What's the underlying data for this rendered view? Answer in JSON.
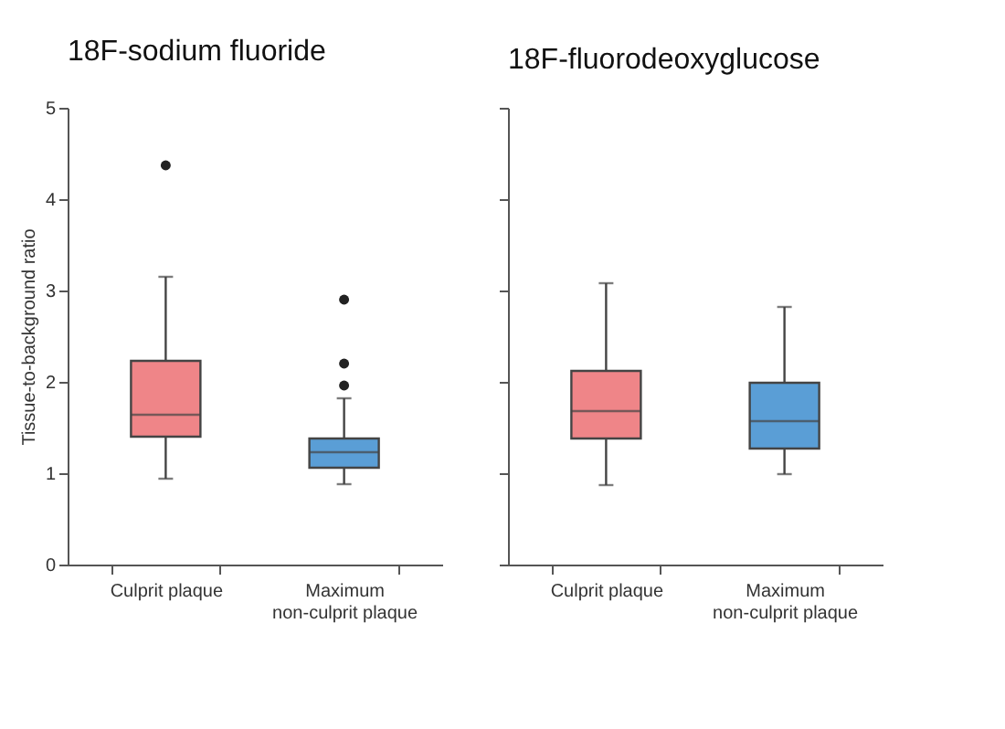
{
  "chart_data": [
    {
      "type": "box",
      "title": "18F-sodium fluoride",
      "ylabel": "Tissue-to-background ratio",
      "categories": [
        "Culprit plaque",
        "Maximum non-culprit plaque"
      ],
      "colors": [
        "#ef8588",
        "#5a9ed6"
      ],
      "ylim": [
        0,
        5
      ],
      "yticks": [
        0,
        1,
        2,
        3,
        4,
        5
      ],
      "grid": false,
      "boxes": [
        {
          "low": 0.94,
          "q1": 1.4,
          "median": 1.64,
          "q3": 2.23,
          "high": 3.15,
          "outliers": [
            4.37
          ]
        },
        {
          "low": 0.88,
          "q1": 1.06,
          "median": 1.23,
          "q3": 1.38,
          "high": 1.82,
          "outliers": [
            2.9,
            2.2,
            1.96
          ]
        }
      ]
    },
    {
      "type": "box",
      "title": "18F-fluorodeoxyglucose",
      "categories": [
        "Culprit plaque",
        "Maximum non-culprit plaque"
      ],
      "colors": [
        "#ef8588",
        "#5a9ed6"
      ],
      "ylim": [
        0,
        5
      ],
      "yticks": [
        0,
        1,
        2,
        3,
        4,
        5
      ],
      "grid": false,
      "tick_labels": "x",
      "boxes": [
        {
          "low": 0.87,
          "q1": 1.38,
          "median": 1.68,
          "q3": 2.12,
          "high": 3.08
        },
        {
          "low": 0.99,
          "q1": 1.27,
          "median": 1.57,
          "q3": 1.99,
          "high": 2.82
        }
      ]
    }
  ]
}
